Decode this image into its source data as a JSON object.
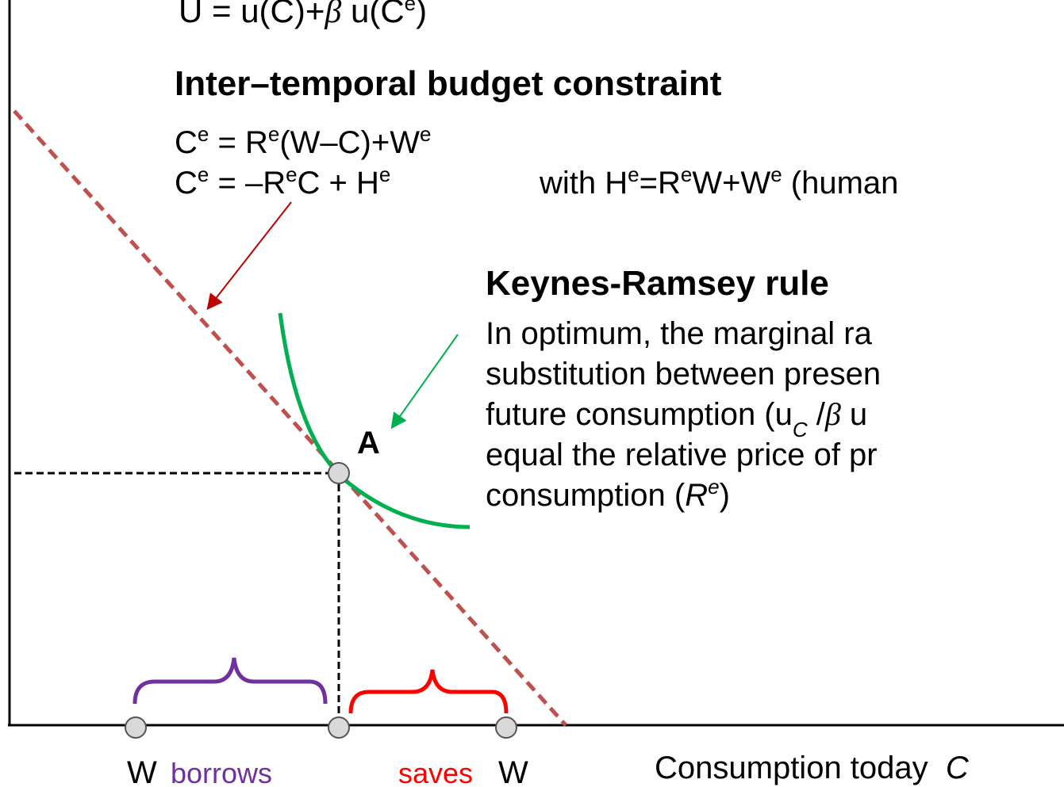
{
  "utility": [
    "U = u(C)+",
    "β",
    " u(C",
    "e",
    ")"
  ],
  "budget": {
    "title": "Inter–temporal budget constraint",
    "line1": [
      "C",
      "e",
      " = R",
      "e",
      "(W–C)+W",
      "e"
    ],
    "line2": [
      "C",
      "e",
      " = –R",
      "e",
      "C + H",
      "e"
    ],
    "note": [
      "with H",
      "e",
      "=R",
      "e",
      "W+W",
      "e",
      " (human"
    ]
  },
  "rule": {
    "title": "Keynes-Ramsey rule",
    "line1": "In optimum, the marginal ra",
    "line2": "substitution between presen",
    "line3": [
      "future consumption (u",
      "C",
      " /",
      "β",
      " u"
    ],
    "line4": "equal the relative price of pr",
    "line5": [
      "consumption (",
      "R",
      "e",
      ")"
    ]
  },
  "point": "A",
  "bottom": {
    "w_left": "W",
    "borrows": "borrows",
    "saves": "saves",
    "w_right": "W",
    "axis_label": [
      "Consumption today  ",
      "C"
    ]
  }
}
